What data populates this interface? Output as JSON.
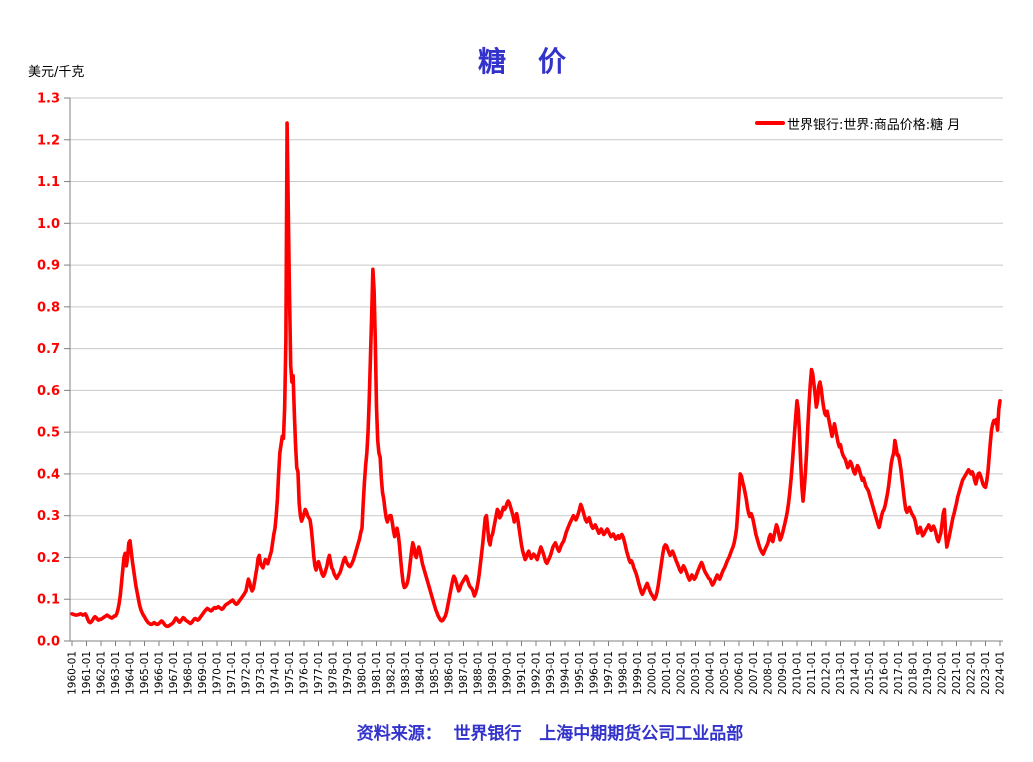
{
  "title": "糖　价",
  "y_unit_label": "美元/千克",
  "legend": {
    "label": "世界银行:世界:商品价格:糖 月"
  },
  "source_note": "资料来源：  世界银行   上海中期期货公司工业品部",
  "colors": {
    "line": "#FF0000",
    "title": "#3333CC",
    "source": "#3333CC",
    "y_tick_text": "#FF0000",
    "x_tick_text": "#000000",
    "grid": "#C9C9C9",
    "axis": "#808080"
  },
  "chart_data": {
    "type": "line",
    "title": "糖　价",
    "ylabel": "美元/千克",
    "series_name": "世界银行:世界:商品价格:糖 月",
    "legend_position": "top-right",
    "grid": "horizontal",
    "ylim": [
      0,
      1.3
    ],
    "y_tick_labels": [
      "0.0",
      "0.1",
      "0.2",
      "0.3",
      "0.4",
      "0.5",
      "0.6",
      "0.7",
      "0.8",
      "0.9",
      "1.0",
      "1.1",
      "1.2",
      "1.3"
    ],
    "x_start": "1960-01",
    "x_end": "2024-01",
    "x_tick_labels": [
      "1960-01",
      "1961-01",
      "1962-01",
      "1963-01",
      "1964-01",
      "1965-01",
      "1966-01",
      "1967-01",
      "1968-01",
      "1969-01",
      "1970-01",
      "1971-01",
      "1972-01",
      "1973-01",
      "1974-01",
      "1975-01",
      "1976-01",
      "1977-01",
      "1978-01",
      "1979-01",
      "1980-01",
      "1981-01",
      "1982-01",
      "1983-01",
      "1984-01",
      "1985-01",
      "1986-01",
      "1987-01",
      "1988-01",
      "1989-01",
      "1990-01",
      "1991-01",
      "1992-01",
      "1993-01",
      "1994-01",
      "1995-01",
      "1996-01",
      "1997-01",
      "1998-01",
      "1999-01",
      "2000-01",
      "2001-01",
      "2002-01",
      "2003-01",
      "2004-01",
      "2005-01",
      "2006-01",
      "2007-01",
      "2008-01",
      "2009-01",
      "2010-01",
      "2011-01",
      "2012-01",
      "2013-01",
      "2014-01",
      "2015-01",
      "2016-01",
      "2017-01",
      "2018-01",
      "2019-01",
      "2020-01",
      "2021-01",
      "2022-01",
      "2023-01",
      "2024-01"
    ],
    "monthly_values": [
      0.065,
      0.064,
      0.063,
      0.062,
      0.062,
      0.063,
      0.064,
      0.065,
      0.064,
      0.062,
      0.063,
      0.065,
      0.06,
      0.052,
      0.046,
      0.044,
      0.046,
      0.05,
      0.055,
      0.058,
      0.056,
      0.052,
      0.05,
      0.052,
      0.052,
      0.054,
      0.056,
      0.058,
      0.06,
      0.062,
      0.06,
      0.058,
      0.056,
      0.055,
      0.057,
      0.06,
      0.06,
      0.065,
      0.075,
      0.09,
      0.11,
      0.14,
      0.17,
      0.2,
      0.21,
      0.18,
      0.2,
      0.235,
      0.24,
      0.215,
      0.19,
      0.17,
      0.15,
      0.13,
      0.115,
      0.1,
      0.085,
      0.075,
      0.068,
      0.062,
      0.058,
      0.052,
      0.048,
      0.044,
      0.042,
      0.04,
      0.04,
      0.042,
      0.044,
      0.042,
      0.04,
      0.04,
      0.042,
      0.045,
      0.048,
      0.046,
      0.042,
      0.038,
      0.036,
      0.035,
      0.036,
      0.038,
      0.04,
      0.042,
      0.045,
      0.05,
      0.055,
      0.052,
      0.048,
      0.045,
      0.048,
      0.052,
      0.056,
      0.054,
      0.05,
      0.048,
      0.046,
      0.044,
      0.042,
      0.044,
      0.048,
      0.052,
      0.054,
      0.052,
      0.05,
      0.052,
      0.056,
      0.06,
      0.064,
      0.068,
      0.072,
      0.075,
      0.078,
      0.076,
      0.074,
      0.072,
      0.074,
      0.078,
      0.08,
      0.078,
      0.08,
      0.082,
      0.08,
      0.078,
      0.076,
      0.078,
      0.082,
      0.086,
      0.088,
      0.09,
      0.092,
      0.094,
      0.096,
      0.098,
      0.094,
      0.09,
      0.088,
      0.09,
      0.094,
      0.098,
      0.102,
      0.106,
      0.11,
      0.115,
      0.12,
      0.135,
      0.148,
      0.14,
      0.128,
      0.12,
      0.125,
      0.14,
      0.158,
      0.175,
      0.198,
      0.205,
      0.185,
      0.18,
      0.175,
      0.185,
      0.195,
      0.19,
      0.185,
      0.195,
      0.205,
      0.215,
      0.235,
      0.255,
      0.27,
      0.3,
      0.34,
      0.4,
      0.45,
      0.47,
      0.49,
      0.485,
      0.56,
      0.72,
      1.24,
      1.03,
      0.83,
      0.66,
      0.62,
      0.635,
      0.545,
      0.47,
      0.415,
      0.405,
      0.33,
      0.3,
      0.287,
      0.295,
      0.305,
      0.315,
      0.31,
      0.3,
      0.295,
      0.29,
      0.27,
      0.24,
      0.205,
      0.18,
      0.17,
      0.185,
      0.19,
      0.18,
      0.17,
      0.16,
      0.155,
      0.16,
      0.17,
      0.18,
      0.195,
      0.205,
      0.19,
      0.175,
      0.17,
      0.16,
      0.155,
      0.15,
      0.155,
      0.16,
      0.165,
      0.175,
      0.185,
      0.195,
      0.2,
      0.19,
      0.185,
      0.18,
      0.178,
      0.182,
      0.188,
      0.195,
      0.205,
      0.215,
      0.225,
      0.235,
      0.245,
      0.26,
      0.27,
      0.33,
      0.38,
      0.42,
      0.45,
      0.5,
      0.58,
      0.68,
      0.78,
      0.89,
      0.84,
      0.72,
      0.56,
      0.48,
      0.45,
      0.44,
      0.39,
      0.355,
      0.34,
      0.315,
      0.295,
      0.285,
      0.295,
      0.3,
      0.3,
      0.285,
      0.265,
      0.25,
      0.258,
      0.27,
      0.255,
      0.23,
      0.195,
      0.165,
      0.14,
      0.128,
      0.13,
      0.135,
      0.145,
      0.165,
      0.19,
      0.215,
      0.235,
      0.225,
      0.205,
      0.2,
      0.215,
      0.225,
      0.215,
      0.2,
      0.185,
      0.175,
      0.165,
      0.155,
      0.145,
      0.135,
      0.125,
      0.115,
      0.105,
      0.095,
      0.085,
      0.075,
      0.068,
      0.06,
      0.055,
      0.05,
      0.048,
      0.05,
      0.055,
      0.06,
      0.07,
      0.085,
      0.1,
      0.115,
      0.13,
      0.145,
      0.155,
      0.15,
      0.14,
      0.13,
      0.12,
      0.125,
      0.135,
      0.14,
      0.145,
      0.15,
      0.155,
      0.15,
      0.14,
      0.132,
      0.128,
      0.125,
      0.118,
      0.108,
      0.115,
      0.125,
      0.14,
      0.16,
      0.185,
      0.21,
      0.235,
      0.265,
      0.295,
      0.3,
      0.27,
      0.24,
      0.23,
      0.25,
      0.255,
      0.27,
      0.285,
      0.3,
      0.315,
      0.31,
      0.295,
      0.3,
      0.31,
      0.32,
      0.315,
      0.32,
      0.33,
      0.335,
      0.33,
      0.32,
      0.31,
      0.3,
      0.285,
      0.295,
      0.305,
      0.29,
      0.27,
      0.25,
      0.23,
      0.215,
      0.205,
      0.195,
      0.2,
      0.21,
      0.215,
      0.205,
      0.198,
      0.202,
      0.208,
      0.205,
      0.2,
      0.195,
      0.205,
      0.215,
      0.225,
      0.218,
      0.21,
      0.2,
      0.19,
      0.186,
      0.192,
      0.198,
      0.205,
      0.215,
      0.225,
      0.23,
      0.235,
      0.228,
      0.22,
      0.215,
      0.222,
      0.23,
      0.235,
      0.24,
      0.25,
      0.26,
      0.268,
      0.275,
      0.282,
      0.288,
      0.294,
      0.3,
      0.295,
      0.29,
      0.296,
      0.305,
      0.315,
      0.327,
      0.32,
      0.31,
      0.3,
      0.29,
      0.285,
      0.29,
      0.295,
      0.285,
      0.275,
      0.27,
      0.272,
      0.278,
      0.272,
      0.265,
      0.258,
      0.262,
      0.268,
      0.262,
      0.255,
      0.258,
      0.264,
      0.268,
      0.262,
      0.256,
      0.25,
      0.252,
      0.256,
      0.25,
      0.244,
      0.248,
      0.252,
      0.246,
      0.25,
      0.255,
      0.25,
      0.24,
      0.228,
      0.215,
      0.205,
      0.195,
      0.188,
      0.192,
      0.185,
      0.175,
      0.168,
      0.16,
      0.15,
      0.138,
      0.128,
      0.118,
      0.112,
      0.118,
      0.125,
      0.132,
      0.138,
      0.13,
      0.122,
      0.115,
      0.11,
      0.105,
      0.1,
      0.105,
      0.115,
      0.13,
      0.15,
      0.17,
      0.19,
      0.21,
      0.225,
      0.23,
      0.228,
      0.22,
      0.212,
      0.205,
      0.21,
      0.215,
      0.208,
      0.2,
      0.192,
      0.185,
      0.178,
      0.17,
      0.165,
      0.172,
      0.18,
      0.175,
      0.168,
      0.16,
      0.152,
      0.146,
      0.15,
      0.158,
      0.154,
      0.148,
      0.152,
      0.16,
      0.168,
      0.175,
      0.182,
      0.188,
      0.182,
      0.172,
      0.165,
      0.16,
      0.155,
      0.15,
      0.148,
      0.14,
      0.134,
      0.138,
      0.145,
      0.152,
      0.158,
      0.152,
      0.148,
      0.155,
      0.163,
      0.17,
      0.175,
      0.182,
      0.19,
      0.196,
      0.202,
      0.21,
      0.218,
      0.225,
      0.235,
      0.25,
      0.27,
      0.31,
      0.355,
      0.4,
      0.395,
      0.38,
      0.37,
      0.355,
      0.34,
      0.32,
      0.305,
      0.298,
      0.305,
      0.298,
      0.285,
      0.27,
      0.255,
      0.245,
      0.235,
      0.225,
      0.218,
      0.212,
      0.208,
      0.215,
      0.222,
      0.228,
      0.235,
      0.248,
      0.255,
      0.242,
      0.238,
      0.252,
      0.265,
      0.278,
      0.27,
      0.255,
      0.242,
      0.248,
      0.258,
      0.27,
      0.282,
      0.295,
      0.31,
      0.33,
      0.355,
      0.385,
      0.42,
      0.46,
      0.5,
      0.54,
      0.575,
      0.555,
      0.5,
      0.43,
      0.37,
      0.335,
      0.365,
      0.405,
      0.455,
      0.515,
      0.57,
      0.615,
      0.65,
      0.64,
      0.615,
      0.59,
      0.56,
      0.575,
      0.61,
      0.62,
      0.605,
      0.58,
      0.56,
      0.545,
      0.54,
      0.55,
      0.535,
      0.52,
      0.505,
      0.49,
      0.505,
      0.52,
      0.505,
      0.49,
      0.475,
      0.465,
      0.47,
      0.455,
      0.445,
      0.44,
      0.435,
      0.425,
      0.415,
      0.42,
      0.43,
      0.425,
      0.415,
      0.405,
      0.4,
      0.41,
      0.42,
      0.415,
      0.405,
      0.395,
      0.385,
      0.39,
      0.38,
      0.37,
      0.365,
      0.36,
      0.35,
      0.34,
      0.33,
      0.32,
      0.31,
      0.3,
      0.29,
      0.28,
      0.272,
      0.285,
      0.3,
      0.31,
      0.315,
      0.325,
      0.34,
      0.355,
      0.375,
      0.4,
      0.425,
      0.44,
      0.45,
      0.48,
      0.465,
      0.445,
      0.445,
      0.43,
      0.41,
      0.385,
      0.36,
      0.335,
      0.315,
      0.308,
      0.315,
      0.32,
      0.312,
      0.305,
      0.3,
      0.295,
      0.285,
      0.27,
      0.258,
      0.265,
      0.272,
      0.262,
      0.252,
      0.256,
      0.262,
      0.268,
      0.272,
      0.278,
      0.272,
      0.265,
      0.27,
      0.275,
      0.268,
      0.258,
      0.245,
      0.238,
      0.248,
      0.258,
      0.28,
      0.305,
      0.315,
      0.255,
      0.225,
      0.238,
      0.25,
      0.265,
      0.28,
      0.295,
      0.305,
      0.318,
      0.33,
      0.345,
      0.355,
      0.365,
      0.375,
      0.385,
      0.39,
      0.395,
      0.4,
      0.405,
      0.41,
      0.405,
      0.4,
      0.405,
      0.398,
      0.385,
      0.376,
      0.388,
      0.4,
      0.402,
      0.395,
      0.385,
      0.375,
      0.37,
      0.368,
      0.382,
      0.405,
      0.44,
      0.475,
      0.505,
      0.52,
      0.528,
      0.522,
      0.53,
      0.505,
      0.555,
      0.575
    ]
  }
}
